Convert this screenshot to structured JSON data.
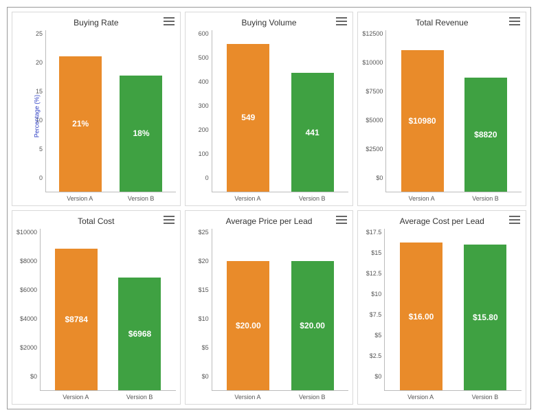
{
  "layout": {
    "rows": 2,
    "cols": 3
  },
  "colors": {
    "version_a": "#e98b2a",
    "version_b": "#3fa142",
    "border": "#d9d9d9",
    "axis": "#bbbbbb",
    "text": "#555555",
    "title": "#333333",
    "ylabel": "#2e3fc4"
  },
  "typography": {
    "title_fontsize": 12,
    "tick_fontsize": 9,
    "barlabel_fontsize": 12
  },
  "categories": [
    "Version A",
    "Version B"
  ],
  "charts": [
    {
      "title": "Buying Rate",
      "type": "bar",
      "ylabel": "Percentage (%)",
      "ymin": 0,
      "ymax": 25,
      "ystep": 5,
      "yticks": [
        "25",
        "20",
        "15",
        "10",
        "5",
        "0"
      ],
      "values": [
        21,
        18
      ],
      "display_labels": [
        "21%",
        "18%"
      ],
      "value_prefix": "",
      "value_suffix": "%"
    },
    {
      "title": "Buying Volume",
      "type": "bar",
      "ylabel": "",
      "ymin": 0,
      "ymax": 600,
      "ystep": 100,
      "yticks": [
        "600",
        "500",
        "400",
        "300",
        "200",
        "100",
        "0"
      ],
      "values": [
        549,
        441
      ],
      "display_labels": [
        "549",
        "441"
      ],
      "value_prefix": "",
      "value_suffix": ""
    },
    {
      "title": "Total Revenue",
      "type": "bar",
      "ylabel": "",
      "ymin": 0,
      "ymax": 12500,
      "ystep": 2500,
      "yticks": [
        "$12500",
        "$10000",
        "$7500",
        "$5000",
        "$2500",
        "$0"
      ],
      "values": [
        10980,
        8820
      ],
      "display_labels": [
        "$10980",
        "$8820"
      ],
      "value_prefix": "$",
      "value_suffix": ""
    },
    {
      "title": "Total Cost",
      "type": "bar",
      "ylabel": "",
      "ymin": 0,
      "ymax": 10000,
      "ystep": 2000,
      "yticks": [
        "$10000",
        "$8000",
        "$6000",
        "$4000",
        "$2000",
        "$0"
      ],
      "values": [
        8784,
        6968
      ],
      "display_labels": [
        "$8784",
        "$6968"
      ],
      "value_prefix": "$",
      "value_suffix": ""
    },
    {
      "title": "Average Price per Lead",
      "type": "bar",
      "ylabel": "",
      "ymin": 0,
      "ymax": 25,
      "ystep": 5,
      "yticks": [
        "$25",
        "$20",
        "$15",
        "$10",
        "$5",
        "$0"
      ],
      "values": [
        20.0,
        20.0
      ],
      "display_labels": [
        "$20.00",
        "$20.00"
      ],
      "value_prefix": "$",
      "value_suffix": ""
    },
    {
      "title": "Average Cost per Lead",
      "type": "bar",
      "ylabel": "",
      "ymin": 0,
      "ymax": 17.5,
      "ystep": 2.5,
      "yticks": [
        "$17.5",
        "$15",
        "$12.5",
        "$10",
        "$7.5",
        "$5",
        "$2.5",
        "$0"
      ],
      "values": [
        16.0,
        15.8
      ],
      "display_labels": [
        "$16.00",
        "$15.80"
      ],
      "value_prefix": "$",
      "value_suffix": ""
    }
  ]
}
